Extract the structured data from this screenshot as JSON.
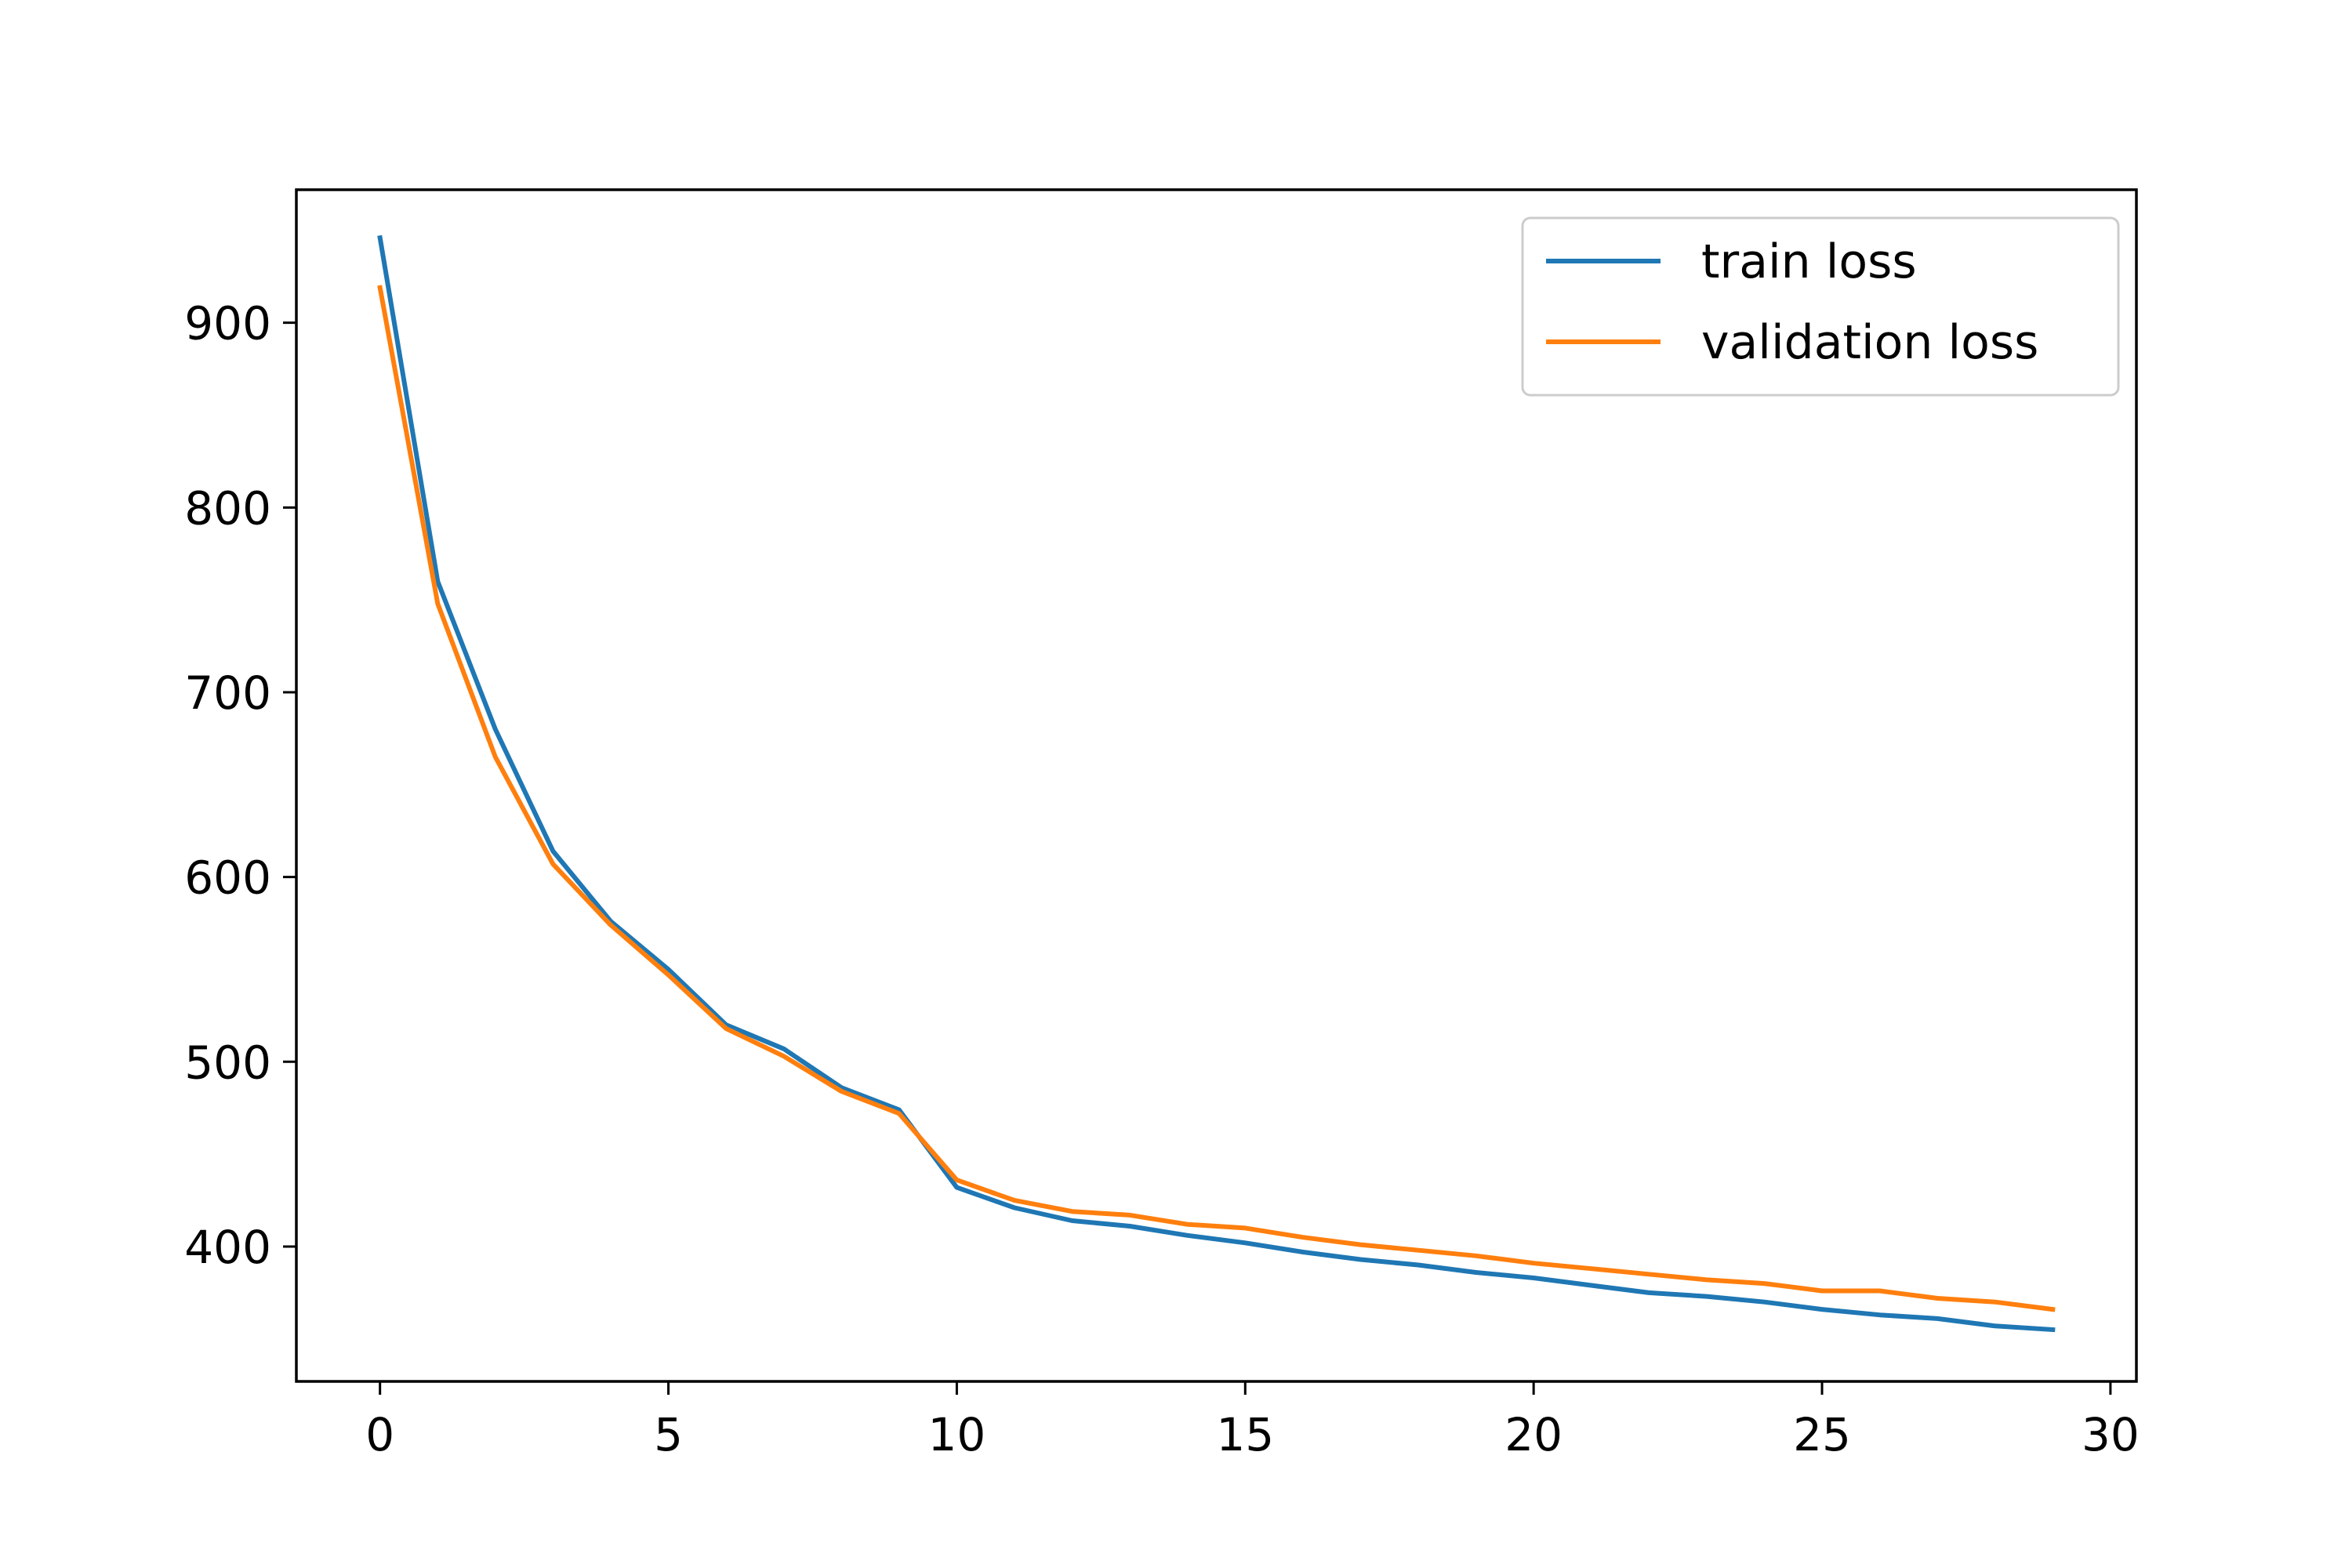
{
  "chart_data": {
    "type": "line",
    "title": "",
    "xlabel": "",
    "ylabel": "",
    "xlim": [
      -1.45,
      30.45
    ],
    "ylim": [
      327,
      972
    ],
    "xticks": [
      0,
      5,
      10,
      15,
      20,
      25,
      30
    ],
    "yticks": [
      400,
      500,
      600,
      700,
      800,
      900
    ],
    "grid": false,
    "legend_position": "top-right",
    "x": [
      0,
      1,
      2,
      3,
      4,
      5,
      6,
      7,
      8,
      9,
      10,
      11,
      12,
      13,
      14,
      15,
      16,
      17,
      18,
      19,
      20,
      21,
      22,
      23,
      24,
      25,
      26,
      27,
      28,
      29
    ],
    "series": [
      {
        "name": "train loss",
        "color": "#1f77b4",
        "values": [
          946,
          760,
          680,
          614,
          576,
          550,
          520,
          507,
          486,
          474,
          432,
          421,
          414,
          411,
          406,
          402,
          397,
          393,
          390,
          386,
          383,
          379,
          375,
          373,
          370,
          366,
          363,
          361,
          357,
          355
        ]
      },
      {
        "name": "validation loss",
        "color": "#ff7f0e",
        "values": [
          919,
          748,
          665,
          607,
          574,
          547,
          518,
          503,
          484,
          472,
          436,
          425,
          419,
          417,
          412,
          410,
          405,
          401,
          398,
          395,
          391,
          388,
          385,
          382,
          380,
          376,
          376,
          372,
          370,
          366
        ]
      }
    ]
  }
}
